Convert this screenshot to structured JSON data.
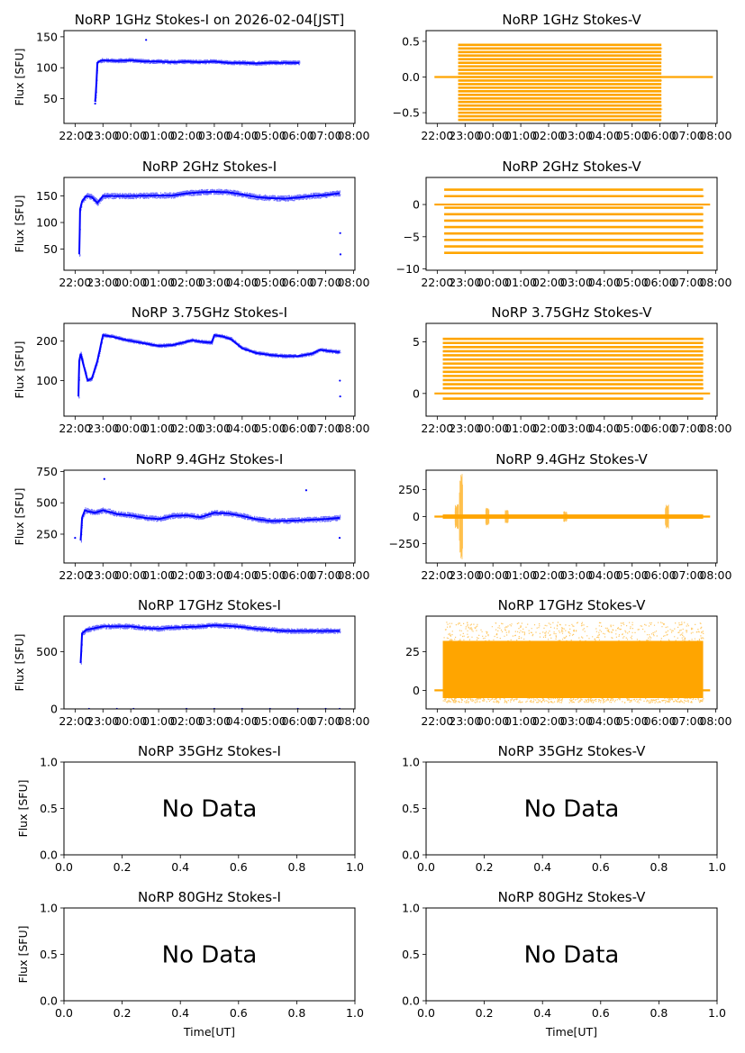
{
  "figure": {
    "xlabel_bottom": "Time[UT]"
  },
  "chart_data": [
    {
      "id": "p-1ghz-i",
      "type": "scatter",
      "kind": "I",
      "color": "#0000ff",
      "title": "NoRP 1GHz Stokes-I on 2026-02-04[JST]",
      "ylabel": "Flux [SFU]",
      "xlabel": "",
      "xlim": [
        21.6,
        32.05
      ],
      "ylim": [
        10,
        160
      ],
      "yticks": [
        50,
        100,
        150
      ],
      "xtick_labels": [
        "22:00",
        "23:00",
        "00:00",
        "01:00",
        "02:00",
        "03:00",
        "04:00",
        "05:00",
        "06:00",
        "07:00",
        "08:00"
      ],
      "xticks": [
        22,
        23,
        24,
        25,
        26,
        27,
        28,
        29,
        30,
        31,
        32
      ],
      "series": [
        {
          "x": [
            22.72,
            22.75,
            22.8,
            22.9,
            23.0,
            23.5,
            24.0,
            24.5,
            25.0,
            25.5,
            26.0,
            26.5,
            27.0,
            27.5,
            28.0,
            28.5,
            29.0,
            29.5,
            30.0,
            30.05
          ],
          "y": [
            45,
            62,
            108,
            111,
            112,
            111,
            112,
            110,
            110,
            109,
            110,
            109,
            110,
            108,
            108,
            107,
            108,
            108,
            108,
            108
          ]
        }
      ],
      "spread": 3,
      "outliers": [
        [
          24.55,
          145
        ],
        [
          22.72,
          42
        ]
      ]
    },
    {
      "id": "p-1ghz-v",
      "type": "scatter",
      "kind": "V",
      "color": "#ffa500",
      "title": "NoRP 1GHz Stokes-V",
      "ylabel": "",
      "xlabel": "",
      "xlim": [
        21.6,
        32.05
      ],
      "ylim": [
        -0.65,
        0.65
      ],
      "yticks": [
        -0.5,
        0.0,
        0.5
      ],
      "xtick_labels": [
        "22:00",
        "23:00",
        "00:00",
        "01:00",
        "02:00",
        "03:00",
        "04:00",
        "05:00",
        "06:00",
        "07:00",
        "08:00"
      ],
      "xticks": [
        22,
        23,
        24,
        25,
        26,
        27,
        28,
        29,
        30,
        31,
        32
      ],
      "baseline": 0,
      "data_range": [
        22.75,
        30.05
      ],
      "line_range": [
        21.9,
        31.9
      ],
      "levels": [
        -0.6,
        -0.55,
        -0.5,
        -0.45,
        -0.4,
        -0.35,
        -0.3,
        -0.25,
        -0.2,
        -0.15,
        -0.1,
        -0.05,
        0,
        0.05,
        0.1,
        0.15,
        0.2,
        0.25,
        0.3,
        0.35,
        0.4,
        0.45
      ]
    },
    {
      "id": "p-2ghz-i",
      "type": "scatter",
      "kind": "I",
      "color": "#0000ff",
      "title": "NoRP 2GHz Stokes-I",
      "ylabel": "Flux [SFU]",
      "xlabel": "",
      "xlim": [
        21.6,
        32.05
      ],
      "ylim": [
        10,
        185
      ],
      "yticks": [
        50,
        100,
        150
      ],
      "xtick_labels": [
        "22:00",
        "23:00",
        "00:00",
        "01:00",
        "02:00",
        "03:00",
        "04:00",
        "05:00",
        "06:00",
        "07:00",
        "08:00"
      ],
      "xticks": [
        22,
        23,
        24,
        25,
        26,
        27,
        28,
        29,
        30,
        31,
        32
      ],
      "series": [
        {
          "x": [
            22.15,
            22.18,
            22.25,
            22.4,
            22.6,
            22.8,
            23.0,
            23.3,
            24.0,
            25.0,
            25.5,
            26.0,
            26.5,
            27.0,
            27.5,
            28.0,
            28.5,
            29.0,
            29.5,
            30.0,
            30.5,
            31.0,
            31.5
          ],
          "y": [
            40,
            125,
            140,
            150,
            148,
            137,
            150,
            150,
            150,
            151,
            151,
            155,
            157,
            158,
            157,
            153,
            148,
            146,
            145,
            147,
            150,
            152,
            155
          ]
        }
      ],
      "spread": 5,
      "outliers": [
        [
          31.53,
          40
        ],
        [
          31.52,
          80
        ]
      ]
    },
    {
      "id": "p-2ghz-v",
      "type": "scatter",
      "kind": "V",
      "color": "#ffa500",
      "title": "NoRP 2GHz Stokes-V",
      "ylabel": "",
      "xlabel": "",
      "xlim": [
        21.6,
        32.05
      ],
      "ylim": [
        -10.2,
        4.2
      ],
      "yticks": [
        -10,
        -5,
        0
      ],
      "xtick_labels": [
        "22:00",
        "23:00",
        "00:00",
        "01:00",
        "02:00",
        "03:00",
        "04:00",
        "05:00",
        "06:00",
        "07:00",
        "08:00"
      ],
      "xticks": [
        22,
        23,
        24,
        25,
        26,
        27,
        28,
        29,
        30,
        31,
        32
      ],
      "baseline": 0,
      "data_range": [
        22.25,
        31.55
      ],
      "line_range": [
        21.9,
        31.8
      ],
      "levels": [
        -7.5,
        -6.5,
        -5.5,
        -4.5,
        -3.5,
        -2.5,
        -1.5,
        -0.5,
        1.3,
        2.3
      ]
    },
    {
      "id": "p-375ghz-i",
      "type": "scatter",
      "kind": "I",
      "color": "#0000ff",
      "title": "NoRP 3.75GHz Stokes-I",
      "ylabel": "Flux [SFU]",
      "xlabel": "",
      "xlim": [
        21.6,
        32.05
      ],
      "ylim": [
        10,
        245
      ],
      "yticks": [
        100,
        200
      ],
      "xtick_labels": [
        "22:00",
        "23:00",
        "00:00",
        "01:00",
        "02:00",
        "03:00",
        "04:00",
        "05:00",
        "06:00",
        "07:00",
        "08:00"
      ],
      "xticks": [
        22,
        23,
        24,
        25,
        26,
        27,
        28,
        29,
        30,
        31,
        32
      ],
      "series": [
        {
          "x": [
            22.12,
            22.15,
            22.2,
            22.3,
            22.45,
            22.6,
            22.8,
            23.0,
            23.3,
            23.7,
            24.2,
            25.0,
            25.5,
            25.8,
            26.2,
            26.6,
            26.9,
            27.0,
            27.3,
            27.6,
            28.0,
            28.5,
            29.0,
            29.5,
            30.0,
            30.5,
            30.8,
            31.1,
            31.5
          ],
          "y": [
            60,
            150,
            168,
            140,
            100,
            105,
            150,
            215,
            212,
            205,
            198,
            188,
            190,
            195,
            202,
            198,
            196,
            215,
            212,
            205,
            182,
            170,
            165,
            162,
            162,
            168,
            178,
            175,
            172
          ]
        }
      ],
      "spread": 4,
      "outliers": [
        [
          31.52,
          60
        ],
        [
          31.51,
          100
        ]
      ]
    },
    {
      "id": "p-375ghz-v",
      "type": "scatter",
      "kind": "V",
      "color": "#ffa500",
      "title": "NoRP 3.75GHz Stokes-V",
      "ylabel": "",
      "xlabel": "",
      "xlim": [
        21.6,
        32.05
      ],
      "ylim": [
        -2.2,
        6.8
      ],
      "yticks": [
        0,
        5
      ],
      "xtick_labels": [
        "22:00",
        "23:00",
        "00:00",
        "01:00",
        "02:00",
        "03:00",
        "04:00",
        "05:00",
        "06:00",
        "07:00",
        "08:00"
      ],
      "xticks": [
        22,
        23,
        24,
        25,
        26,
        27,
        28,
        29,
        30,
        31,
        32
      ],
      "baseline": 0,
      "data_range": [
        22.2,
        31.55
      ],
      "line_range": [
        21.9,
        31.8
      ],
      "levels": [
        -0.5,
        0.5,
        0.9,
        1.3,
        1.7,
        2.1,
        2.5,
        2.9,
        3.3,
        3.7,
        4.1,
        4.5,
        4.9,
        5.3
      ]
    },
    {
      "id": "p-94ghz-i",
      "type": "scatter",
      "kind": "I",
      "color": "#0000ff",
      "title": "NoRP 9.4GHz Stokes-I",
      "ylabel": "Flux [SFU]",
      "xlabel": "",
      "xlim": [
        21.6,
        32.05
      ],
      "ylim": [
        20,
        760
      ],
      "yticks": [
        250,
        500,
        750
      ],
      "xtick_labels": [
        "22:00",
        "23:00",
        "00:00",
        "01:00",
        "02:00",
        "03:00",
        "04:00",
        "05:00",
        "06:00",
        "07:00",
        "08:00"
      ],
      "xticks": [
        22,
        23,
        24,
        25,
        26,
        27,
        28,
        29,
        30,
        31,
        32
      ],
      "series": [
        {
          "x": [
            22.2,
            22.25,
            22.35,
            22.5,
            22.7,
            23.0,
            23.2,
            23.5,
            24.0,
            24.5,
            25.0,
            25.5,
            26.0,
            26.5,
            27.0,
            27.5,
            28.0,
            28.5,
            29.0,
            29.5,
            30.0,
            30.5,
            31.0,
            31.5
          ],
          "y": [
            200,
            380,
            440,
            430,
            420,
            440,
            430,
            410,
            400,
            380,
            370,
            395,
            400,
            385,
            420,
            415,
            395,
            370,
            355,
            355,
            360,
            365,
            370,
            380
          ]
        }
      ],
      "spread": 20,
      "outliers": [
        [
          23.05,
          690
        ],
        [
          30.3,
          600
        ],
        [
          22.0,
          220
        ],
        [
          31.5,
          220
        ]
      ]
    },
    {
      "id": "p-94ghz-v",
      "type": "scatter",
      "kind": "V",
      "color": "#ffa500",
      "title": "NoRP 9.4GHz Stokes-V",
      "ylabel": "",
      "xlabel": "",
      "xlim": [
        21.6,
        32.05
      ],
      "ylim": [
        -430,
        430
      ],
      "yticks": [
        -250,
        0,
        250
      ],
      "xtick_labels": [
        "22:00",
        "23:00",
        "00:00",
        "01:00",
        "02:00",
        "03:00",
        "04:00",
        "05:00",
        "06:00",
        "07:00",
        "08:00"
      ],
      "xticks": [
        22,
        23,
        24,
        25,
        26,
        27,
        28,
        29,
        30,
        31,
        32
      ],
      "baseline": 0,
      "data_range": [
        22.2,
        31.55
      ],
      "line_range": [
        21.9,
        31.8
      ],
      "spikes": [
        [
          22.85,
          400
        ],
        [
          22.7,
          120
        ],
        [
          23.8,
          80
        ],
        [
          24.5,
          60
        ],
        [
          30.25,
          110
        ],
        [
          26.6,
          50
        ]
      ]
    },
    {
      "id": "p-17ghz-i",
      "type": "scatter",
      "kind": "I",
      "color": "#0000ff",
      "title": "NoRP 17GHz Stokes-I",
      "ylabel": "Flux [SFU]",
      "xlabel": "",
      "xlim": [
        21.6,
        32.05
      ],
      "ylim": [
        0,
        810
      ],
      "yticks": [
        0,
        500
      ],
      "xtick_labels": [
        "22:00",
        "23:00",
        "00:00",
        "01:00",
        "02:00",
        "03:00",
        "04:00",
        "05:00",
        "06:00",
        "07:00",
        "08:00"
      ],
      "xticks": [
        22,
        23,
        24,
        25,
        26,
        27,
        28,
        29,
        30,
        31,
        32
      ],
      "series": [
        {
          "x": [
            22.2,
            22.25,
            22.4,
            23.0,
            24.0,
            24.5,
            25.0,
            25.5,
            26.0,
            26.5,
            27.0,
            27.5,
            28.0,
            28.5,
            29.0,
            29.5,
            30.0,
            30.5,
            31.0,
            31.5
          ],
          "y": [
            400,
            660,
            690,
            720,
            720,
            705,
            700,
            710,
            715,
            720,
            730,
            725,
            715,
            700,
            690,
            680,
            680,
            680,
            680,
            680
          ]
        }
      ],
      "spread": 20,
      "outliers": [
        [
          22.5,
          0
        ],
        [
          23.5,
          0
        ],
        [
          24.1,
          0
        ],
        [
          26.0,
          0
        ],
        [
          27.0,
          0
        ],
        [
          28.0,
          0
        ],
        [
          29.0,
          0
        ],
        [
          30.0,
          0
        ],
        [
          31.0,
          0
        ],
        [
          31.5,
          0
        ]
      ]
    },
    {
      "id": "p-17ghz-v",
      "type": "scatter",
      "kind": "V",
      "color": "#ffa500",
      "title": "NoRP 17GHz Stokes-V",
      "ylabel": "",
      "xlabel": "",
      "xlim": [
        21.6,
        32.05
      ],
      "ylim": [
        -12,
        48
      ],
      "yticks": [
        0,
        25
      ],
      "xtick_labels": [
        "22:00",
        "23:00",
        "00:00",
        "01:00",
        "02:00",
        "03:00",
        "04:00",
        "05:00",
        "06:00",
        "07:00",
        "08:00"
      ],
      "xticks": [
        22,
        23,
        24,
        25,
        26,
        27,
        28,
        29,
        30,
        31,
        32
      ],
      "baseline": 0,
      "data_range": [
        22.2,
        31.55
      ],
      "line_range": [
        21.9,
        31.8
      ],
      "band": [
        -5,
        32
      ],
      "band_extreme": [
        -8,
        44
      ]
    },
    {
      "id": "p-35ghz-i",
      "type": "empty",
      "title": "NoRP 35GHz Stokes-I",
      "ylabel": "Flux [SFU]",
      "xlabel": "",
      "message": "No Data",
      "xlim": [
        0,
        1
      ],
      "ylim": [
        0,
        1
      ],
      "xtick_labels": [
        "0.0",
        "0.2",
        "0.4",
        "0.6",
        "0.8",
        "1.0"
      ],
      "ytick_labels": [
        "0.0",
        "0.5",
        "1.0"
      ]
    },
    {
      "id": "p-35ghz-v",
      "type": "empty",
      "title": "NoRP 35GHz Stokes-V",
      "ylabel": "",
      "xlabel": "",
      "message": "No Data",
      "xlim": [
        0,
        1
      ],
      "ylim": [
        0,
        1
      ],
      "xtick_labels": [
        "0.0",
        "0.2",
        "0.4",
        "0.6",
        "0.8",
        "1.0"
      ],
      "ytick_labels": [
        "0.0",
        "0.5",
        "1.0"
      ]
    },
    {
      "id": "p-80ghz-i",
      "type": "empty",
      "title": "NoRP 80GHz Stokes-I",
      "ylabel": "Flux [SFU]",
      "xlabel": "Time[UT]",
      "message": "No Data",
      "xlim": [
        0,
        1
      ],
      "ylim": [
        0,
        1
      ],
      "xtick_labels": [
        "0.0",
        "0.2",
        "0.4",
        "0.6",
        "0.8",
        "1.0"
      ],
      "ytick_labels": [
        "0.0",
        "0.5",
        "1.0"
      ]
    },
    {
      "id": "p-80ghz-v",
      "type": "empty",
      "title": "NoRP 80GHz Stokes-V",
      "ylabel": "",
      "xlabel": "Time[UT]",
      "message": "No Data",
      "xlim": [
        0,
        1
      ],
      "ylim": [
        0,
        1
      ],
      "xtick_labels": [
        "0.0",
        "0.2",
        "0.4",
        "0.6",
        "0.8",
        "1.0"
      ],
      "ytick_labels": [
        "0.0",
        "0.5",
        "1.0"
      ]
    }
  ]
}
